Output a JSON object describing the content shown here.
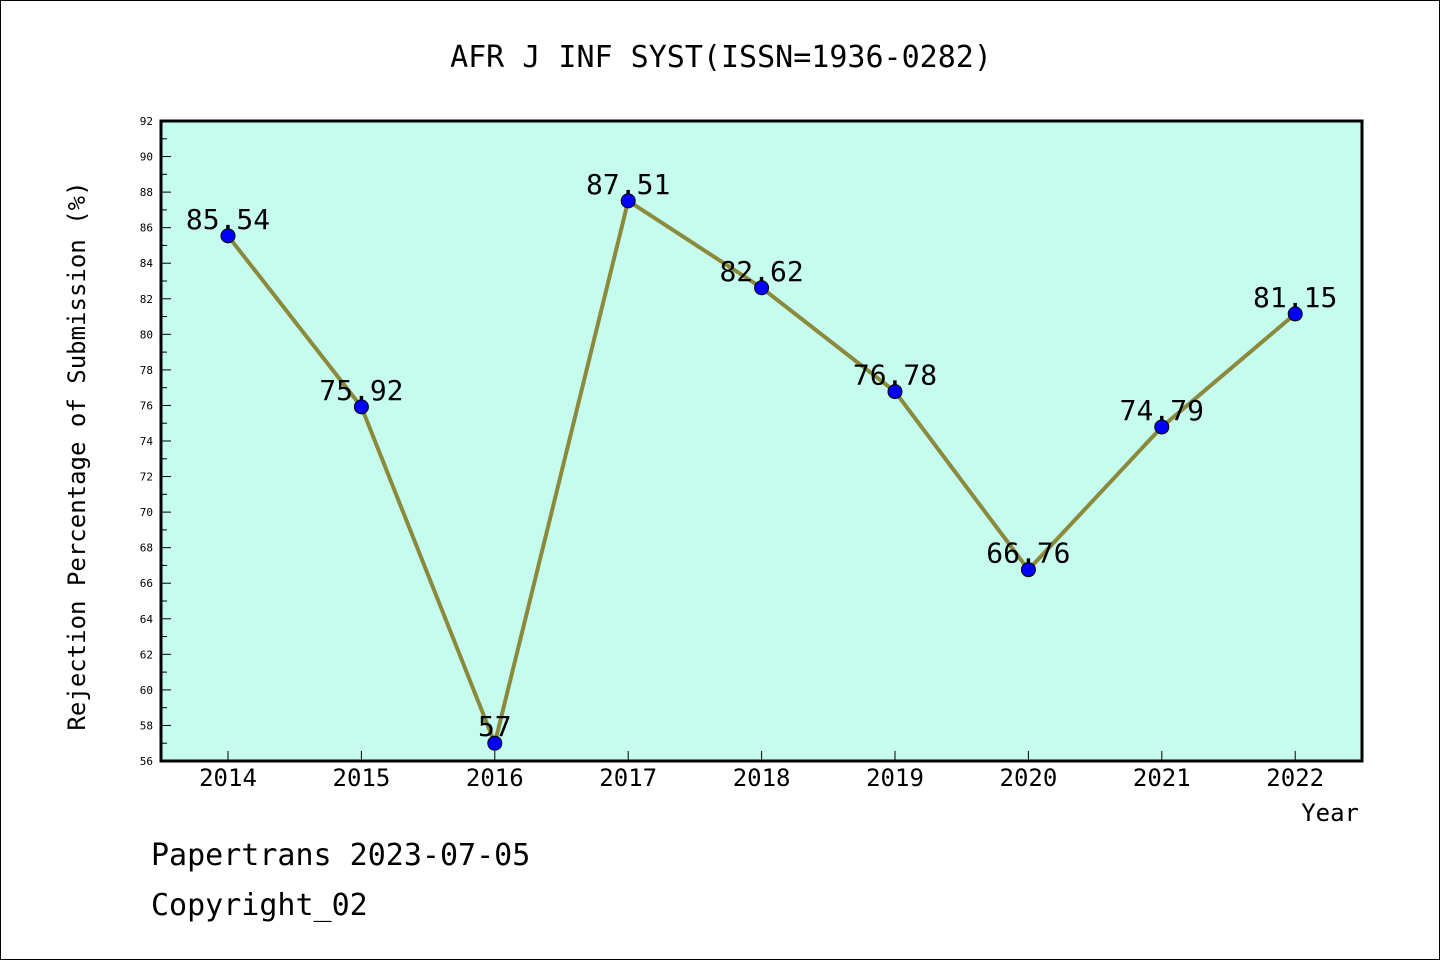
{
  "chart_data": {
    "type": "line",
    "title": "AFR J INF SYST(ISSN=1936-0282)",
    "xlabel": "Year",
    "ylabel": "Rejection Percentage of Submission (%)",
    "categories": [
      "2014",
      "2015",
      "2016",
      "2017",
      "2018",
      "2019",
      "2020",
      "2021",
      "2022"
    ],
    "series": [
      {
        "values": [
          85.54,
          75.92,
          57,
          87.51,
          82.62,
          76.78,
          66.76,
          74.79,
          81.15
        ],
        "labels": [
          "85.54",
          "75.92",
          "57",
          "87.51",
          "82.62",
          "76.78",
          "66.76",
          "74.79",
          "81.15"
        ]
      }
    ],
    "ylim": [
      56,
      92
    ],
    "yticks": [
      "56",
      "58",
      "60",
      "62",
      "64",
      "66",
      "68",
      "70",
      "72",
      "74",
      "76",
      "78",
      "80",
      "82",
      "84",
      "86",
      "88",
      "90",
      "92"
    ],
    "grid": false,
    "legend": "none",
    "colors": {
      "plot_background": "#c6fcee",
      "line": "#8b8a3c",
      "marker": "#0000ff"
    }
  },
  "footer": {
    "line1": "Papertrans 2023-07-05",
    "line2": "Copyright_02"
  }
}
